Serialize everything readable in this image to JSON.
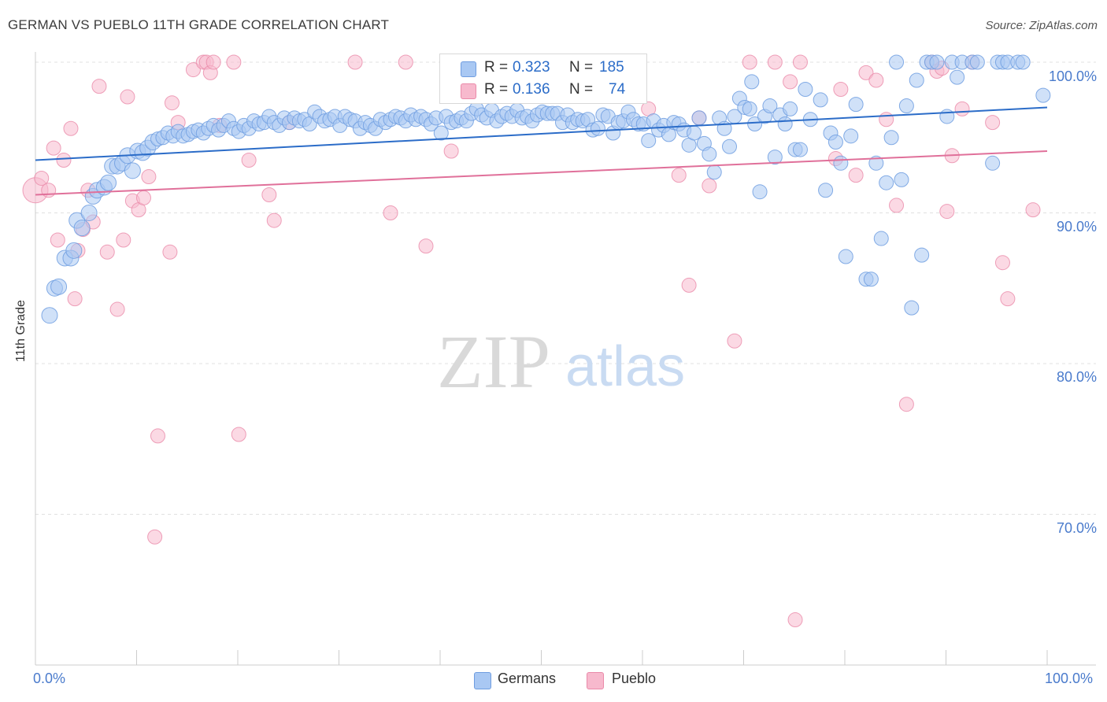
{
  "title": "GERMAN VS PUEBLO 11TH GRADE CORRELATION CHART",
  "source": "Source: ZipAtlas.com",
  "watermark": {
    "zip": "ZIP",
    "atlas": "atlas"
  },
  "colors": {
    "german_fill": "#a9c8f3",
    "german_stroke": "#6f9de0",
    "german_line": "#2b6cc8",
    "pueblo_fill": "#f7b9cd",
    "pueblo_stroke": "#ea8aa9",
    "pueblo_line": "#e0709a",
    "tick_label": "#4a7bcc",
    "grid": "#e0e0e0"
  },
  "legend": {
    "rows": [
      {
        "r_label": "R =",
        "r_value": "0.323",
        "n_label": "N =",
        "n_value": "185"
      },
      {
        "r_label": "R =",
        "r_value": "0.136",
        "n_label": "N =",
        "n_value": "74"
      }
    ]
  },
  "bottom_legend": {
    "german": "Germans",
    "pueblo": "Pueblo"
  },
  "chart_data": {
    "type": "scatter",
    "title": "GERMAN VS PUEBLO 11TH GRADE CORRELATION CHART",
    "xlabel": "",
    "ylabel": "11th Grade",
    "xlim": [
      0,
      100
    ],
    "ylim": [
      60,
      100
    ],
    "x_tick_labels": [
      "0.0%",
      "100.0%"
    ],
    "y_tick_labels": [
      "100.0%",
      "90.0%",
      "80.0%",
      "70.0%"
    ],
    "y_ticks": [
      100,
      90,
      80,
      70
    ],
    "grid": true,
    "legend_position": "top-center",
    "series": [
      {
        "name": "Germans",
        "R": 0.323,
        "N": 185,
        "trend": {
          "x": [
            0,
            100
          ],
          "y": [
            93.5,
            97.0
          ]
        },
        "points": [
          [
            1.4,
            83.2
          ],
          [
            1.9,
            85
          ],
          [
            2.3,
            85.1
          ],
          [
            2.9,
            87
          ],
          [
            3.5,
            87
          ],
          [
            3.8,
            87.5
          ],
          [
            4.1,
            89.5
          ],
          [
            4.6,
            89
          ],
          [
            5.3,
            90
          ],
          [
            5.7,
            91.1
          ],
          [
            6.1,
            91.5
          ],
          [
            6.8,
            91.7
          ],
          [
            7.2,
            92
          ],
          [
            7.6,
            93.1
          ],
          [
            8.1,
            93.1
          ],
          [
            8.6,
            93.3
          ],
          [
            9.1,
            93.8
          ],
          [
            9.6,
            92.8
          ],
          [
            10.1,
            94.1
          ],
          [
            10.6,
            94
          ],
          [
            11.1,
            94.3
          ],
          [
            11.6,
            94.7
          ],
          [
            12.1,
            94.9
          ],
          [
            12.6,
            95
          ],
          [
            13.1,
            95.3
          ],
          [
            13.6,
            95.1
          ],
          [
            14.1,
            95.4
          ],
          [
            14.6,
            95.1
          ],
          [
            15.1,
            95.2
          ],
          [
            15.6,
            95.4
          ],
          [
            16.1,
            95.5
          ],
          [
            16.6,
            95.3
          ],
          [
            17.1,
            95.6
          ],
          [
            17.6,
            95.8
          ],
          [
            18.1,
            95.5
          ],
          [
            18.6,
            95.8
          ],
          [
            19.1,
            96.1
          ],
          [
            19.6,
            95.6
          ],
          [
            20.1,
            95.4
          ],
          [
            20.6,
            95.8
          ],
          [
            21.1,
            95.6
          ],
          [
            21.6,
            96.1
          ],
          [
            22.1,
            95.9
          ],
          [
            22.6,
            96
          ],
          [
            23.1,
            96.4
          ],
          [
            23.6,
            96
          ],
          [
            24.1,
            95.8
          ],
          [
            24.6,
            96.3
          ],
          [
            25.1,
            96
          ],
          [
            25.6,
            96.3
          ],
          [
            26.1,
            96.1
          ],
          [
            26.6,
            96.2
          ],
          [
            27.1,
            95.9
          ],
          [
            27.6,
            96.7
          ],
          [
            28.1,
            96.4
          ],
          [
            28.6,
            96.1
          ],
          [
            29.1,
            96.2
          ],
          [
            29.6,
            96.4
          ],
          [
            30.1,
            95.8
          ],
          [
            30.6,
            96.4
          ],
          [
            31.1,
            96.2
          ],
          [
            31.6,
            96.1
          ],
          [
            32.1,
            95.6
          ],
          [
            32.6,
            96
          ],
          [
            33.1,
            95.8
          ],
          [
            33.6,
            95.6
          ],
          [
            34.1,
            96.2
          ],
          [
            34.6,
            96
          ],
          [
            35.1,
            96.2
          ],
          [
            35.6,
            96.4
          ],
          [
            36.1,
            96.3
          ],
          [
            36.6,
            96.1
          ],
          [
            37.1,
            96.5
          ],
          [
            37.6,
            96.2
          ],
          [
            38.1,
            96.4
          ],
          [
            38.6,
            96.2
          ],
          [
            39.1,
            95.9
          ],
          [
            39.6,
            96.3
          ],
          [
            40.1,
            95.3
          ],
          [
            40.6,
            96.4
          ],
          [
            41.1,
            96
          ],
          [
            41.6,
            96.1
          ],
          [
            42.1,
            96.3
          ],
          [
            42.6,
            96.1
          ],
          [
            43.1,
            96.6
          ],
          [
            43.6,
            96.9
          ],
          [
            44.1,
            96.5
          ],
          [
            44.6,
            96.3
          ],
          [
            45.1,
            96.8
          ],
          [
            45.6,
            96.1
          ],
          [
            46.1,
            96.4
          ],
          [
            46.6,
            96.6
          ],
          [
            47.1,
            96.4
          ],
          [
            47.6,
            96.8
          ],
          [
            48.1,
            96.3
          ],
          [
            48.6,
            96.4
          ],
          [
            49.1,
            96.1
          ],
          [
            49.6,
            96.5
          ],
          [
            50.1,
            96.7
          ],
          [
            50.6,
            96.6
          ],
          [
            51.1,
            96.6
          ],
          [
            51.6,
            96.6
          ],
          [
            52.1,
            96
          ],
          [
            52.6,
            96.5
          ],
          [
            53.1,
            96
          ],
          [
            53.6,
            96.2
          ],
          [
            54.1,
            96.1
          ],
          [
            54.6,
            96.2
          ],
          [
            55.1,
            95.5
          ],
          [
            55.6,
            95.6
          ],
          [
            56.1,
            96.5
          ],
          [
            56.6,
            96.4
          ],
          [
            57.1,
            95.3
          ],
          [
            57.6,
            96
          ],
          [
            58.1,
            96.1
          ],
          [
            58.6,
            96.7
          ],
          [
            59.1,
            96.2
          ],
          [
            59.6,
            95.9
          ],
          [
            60.1,
            95.9
          ],
          [
            60.6,
            94.8
          ],
          [
            61.1,
            96.1
          ],
          [
            61.6,
            95.5
          ],
          [
            62.1,
            95.8
          ],
          [
            62.6,
            95.2
          ],
          [
            63.1,
            96
          ],
          [
            63.6,
            95.9
          ],
          [
            64.1,
            95.5
          ],
          [
            64.6,
            94.5
          ],
          [
            65.1,
            95.3
          ],
          [
            65.6,
            96.3
          ],
          [
            66.1,
            94.6
          ],
          [
            66.6,
            93.9
          ],
          [
            67.1,
            92.7
          ],
          [
            67.6,
            96.3
          ],
          [
            68.1,
            95.6
          ],
          [
            68.6,
            94.4
          ],
          [
            69.1,
            96.4
          ],
          [
            69.6,
            97.6
          ],
          [
            70.1,
            97
          ],
          [
            70.6,
            96.9
          ],
          [
            70.8,
            98.7
          ],
          [
            71.1,
            95.9
          ],
          [
            71.6,
            91.4
          ],
          [
            72.1,
            96.4
          ],
          [
            72.6,
            97.1
          ],
          [
            73.1,
            93.7
          ],
          [
            73.6,
            96.5
          ],
          [
            74.1,
            95.9
          ],
          [
            74.6,
            96.9
          ],
          [
            75.1,
            94.2
          ],
          [
            75.6,
            94.2
          ],
          [
            76.1,
            98.2
          ],
          [
            76.6,
            96.2
          ],
          [
            77.6,
            97.5
          ],
          [
            78.1,
            91.5
          ],
          [
            78.6,
            95.3
          ],
          [
            79.1,
            94.7
          ],
          [
            79.6,
            93.3
          ],
          [
            80.1,
            87.1
          ],
          [
            80.6,
            95.1
          ],
          [
            81.1,
            97.2
          ],
          [
            82.1,
            85.6
          ],
          [
            82.6,
            85.6
          ],
          [
            83.1,
            93.3
          ],
          [
            83.6,
            88.3
          ],
          [
            84.1,
            92
          ],
          [
            84.6,
            95
          ],
          [
            85.1,
            100
          ],
          [
            85.6,
            92.2
          ],
          [
            86.1,
            97.1
          ],
          [
            86.6,
            83.7
          ],
          [
            87.1,
            98.8
          ],
          [
            87.6,
            87.2
          ],
          [
            88.1,
            100
          ],
          [
            88.6,
            100
          ],
          [
            89.1,
            100
          ],
          [
            90.1,
            96.4
          ],
          [
            90.6,
            100
          ],
          [
            91.1,
            99
          ],
          [
            91.6,
            100
          ],
          [
            92.6,
            100
          ],
          [
            93.1,
            100
          ],
          [
            94.6,
            93.3
          ],
          [
            95.1,
            100
          ],
          [
            95.6,
            100
          ],
          [
            96.1,
            100
          ],
          [
            97.1,
            100
          ],
          [
            97.6,
            100
          ],
          [
            99.6,
            97.8
          ]
        ]
      },
      {
        "name": "Pueblo",
        "R": 0.136,
        "N": 74,
        "trend": {
          "x": [
            0,
            100
          ],
          "y": [
            91.2,
            94.1
          ]
        },
        "points": [
          [
            0,
            91.5
          ],
          [
            0.6,
            92.3
          ],
          [
            1.3,
            91.5
          ],
          [
            1.8,
            94.3
          ],
          [
            2.2,
            88.2
          ],
          [
            2.8,
            93.5
          ],
          [
            3.5,
            95.6
          ],
          [
            3.9,
            84.3
          ],
          [
            4.2,
            87.5
          ],
          [
            4.7,
            88.9
          ],
          [
            5.2,
            91.5
          ],
          [
            5.7,
            89.4
          ],
          [
            6.3,
            98.4
          ],
          [
            7.1,
            87.4
          ],
          [
            8.1,
            83.6
          ],
          [
            8.7,
            88.2
          ],
          [
            9.1,
            97.7
          ],
          [
            9.6,
            90.8
          ],
          [
            10.2,
            90.2
          ],
          [
            10.7,
            91
          ],
          [
            11.2,
            92.4
          ],
          [
            11.8,
            68.5
          ],
          [
            12.1,
            75.2
          ],
          [
            13.3,
            87.4
          ],
          [
            13.5,
            97.3
          ],
          [
            14.1,
            96
          ],
          [
            15.6,
            99.5
          ],
          [
            16.6,
            100
          ],
          [
            16.9,
            100
          ],
          [
            17.3,
            99.3
          ],
          [
            17.6,
            100
          ],
          [
            18.2,
            95.8
          ],
          [
            19.6,
            100
          ],
          [
            20.1,
            75.3
          ],
          [
            21.1,
            93.5
          ],
          [
            23.1,
            91.2
          ],
          [
            23.6,
            89.5
          ],
          [
            25.1,
            96
          ],
          [
            31.6,
            100
          ],
          [
            35.1,
            90
          ],
          [
            36.6,
            100
          ],
          [
            38.6,
            87.8
          ],
          [
            41.1,
            94.1
          ],
          [
            50.6,
            100
          ],
          [
            60.6,
            96.9
          ],
          [
            63.6,
            92.5
          ],
          [
            64.6,
            85.2
          ],
          [
            65.6,
            96.3
          ],
          [
            66.6,
            91.8
          ],
          [
            69.1,
            81.5
          ],
          [
            70.6,
            100
          ],
          [
            73.1,
            100
          ],
          [
            74.6,
            98.7
          ],
          [
            75.6,
            100
          ],
          [
            79.1,
            93.6
          ],
          [
            79.6,
            98.2
          ],
          [
            81.1,
            92.5
          ],
          [
            82.1,
            99.3
          ],
          [
            83.1,
            98.8
          ],
          [
            84.1,
            96.2
          ],
          [
            85.1,
            90.5
          ],
          [
            86.1,
            77.3
          ],
          [
            88.6,
            100
          ],
          [
            89.1,
            99.4
          ],
          [
            89.6,
            99.6
          ],
          [
            90.1,
            90.1
          ],
          [
            90.6,
            93.8
          ],
          [
            91.6,
            96.9
          ],
          [
            92.6,
            100
          ],
          [
            94.6,
            96
          ],
          [
            95.6,
            86.7
          ],
          [
            96.1,
            84.3
          ],
          [
            98.6,
            90.2
          ],
          [
            75.1,
            63
          ]
        ]
      }
    ]
  }
}
